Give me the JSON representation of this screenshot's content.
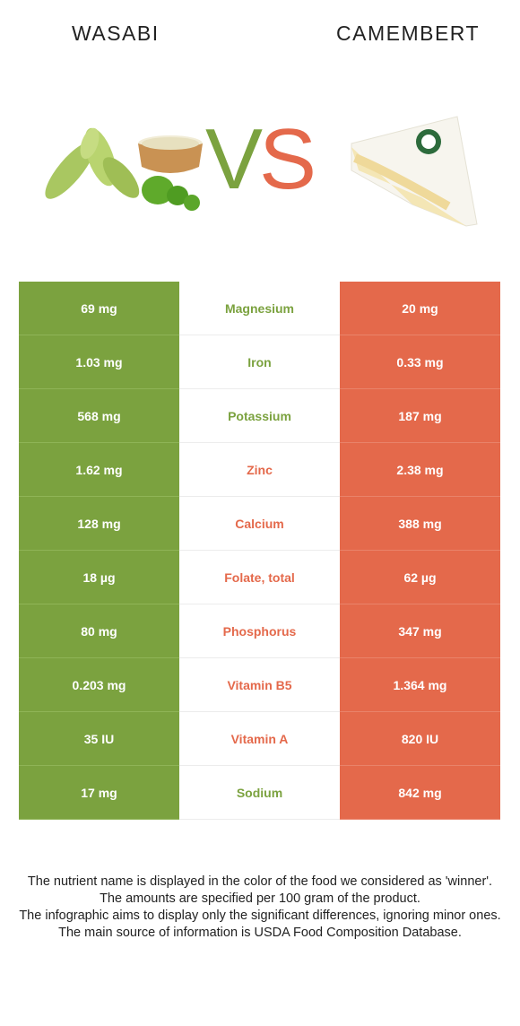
{
  "header": {
    "left_food": "WASABI",
    "right_food": "CAMEMBERT",
    "vs_v": "V",
    "vs_s": "S"
  },
  "colors": {
    "left_winner": "#7ba23f",
    "right_winner": "#e4694b"
  },
  "rows": [
    {
      "left": "69 mg",
      "nutrient": "Magnesium",
      "right": "20 mg",
      "winner": "left"
    },
    {
      "left": "1.03 mg",
      "nutrient": "Iron",
      "right": "0.33 mg",
      "winner": "left"
    },
    {
      "left": "568 mg",
      "nutrient": "Potassium",
      "right": "187 mg",
      "winner": "left"
    },
    {
      "left": "1.62 mg",
      "nutrient": "Zinc",
      "right": "2.38 mg",
      "winner": "right"
    },
    {
      "left": "128 mg",
      "nutrient": "Calcium",
      "right": "388 mg",
      "winner": "right"
    },
    {
      "left": "18 µg",
      "nutrient": "Folate, total",
      "right": "62 µg",
      "winner": "right"
    },
    {
      "left": "80 mg",
      "nutrient": "Phosphorus",
      "right": "347 mg",
      "winner": "right"
    },
    {
      "left": "0.203 mg",
      "nutrient": "Vitamin B5",
      "right": "1.364 mg",
      "winner": "right"
    },
    {
      "left": "35 IU",
      "nutrient": "Vitamin A",
      "right": "820 IU",
      "winner": "right"
    },
    {
      "left": "17 mg",
      "nutrient": "Sodium",
      "right": "842 mg",
      "winner": "left"
    }
  ],
  "footer": {
    "line1": "The nutrient name is displayed in the color of the food we considered as 'winner'.",
    "line2": "The amounts are specified per 100 gram of the product.",
    "line3": "The infographic aims to display only the significant differences, ignoring minor ones.",
    "line4": "The main source of information is USDA Food Composition Database."
  }
}
